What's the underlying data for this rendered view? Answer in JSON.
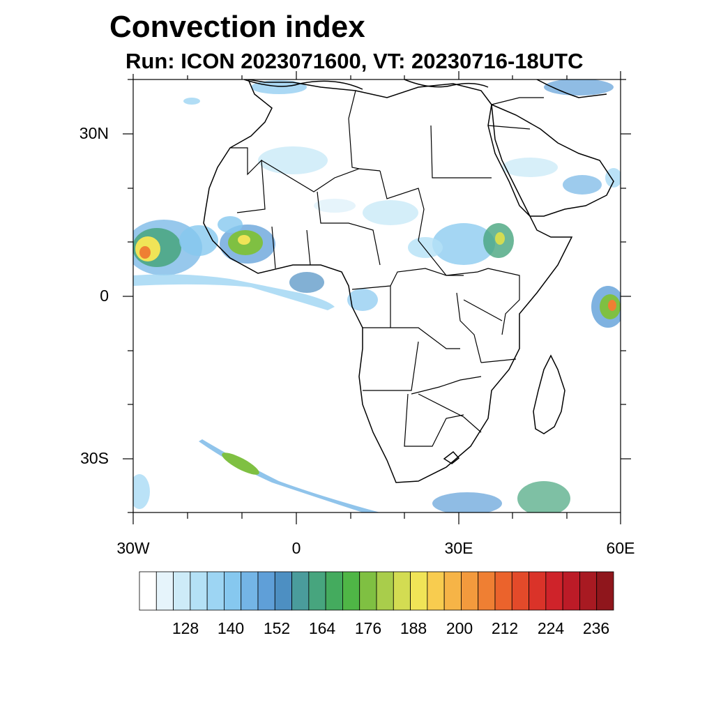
{
  "title": "Convection index",
  "subtitle": "Run: ICON 2023071600,  VT: 20230716-18UTC",
  "axes": {
    "lat_labels": [
      "30N",
      "0",
      "30S"
    ],
    "lon_labels": [
      "30W",
      "0",
      "30E",
      "60E"
    ],
    "lat_range": [
      -40,
      40
    ],
    "lon_range": [
      -30,
      60
    ]
  },
  "colorbar": {
    "labels": [
      "128",
      "140",
      "152",
      "164",
      "176",
      "188",
      "200",
      "212",
      "224",
      "236"
    ],
    "colors": [
      "#ffffff",
      "#e6f4fb",
      "#cdebf8",
      "#b4e1f6",
      "#9dd5f3",
      "#86c8ef",
      "#74b5e6",
      "#5f9fd8",
      "#4d8fc2",
      "#4a9c9c",
      "#47a57e",
      "#44ab5e",
      "#4fb646",
      "#7fc042",
      "#a9cd4b",
      "#d3dc52",
      "#f0e457",
      "#f8cc4f",
      "#f6b447",
      "#f39a3d",
      "#ef7f33",
      "#eb632c",
      "#e34a2a",
      "#da3329",
      "#cf232a",
      "#bc1b27",
      "#a81a22",
      "#8f161c"
    ]
  },
  "colors": {
    "land_line": "#000000",
    "frame": "#000000"
  }
}
